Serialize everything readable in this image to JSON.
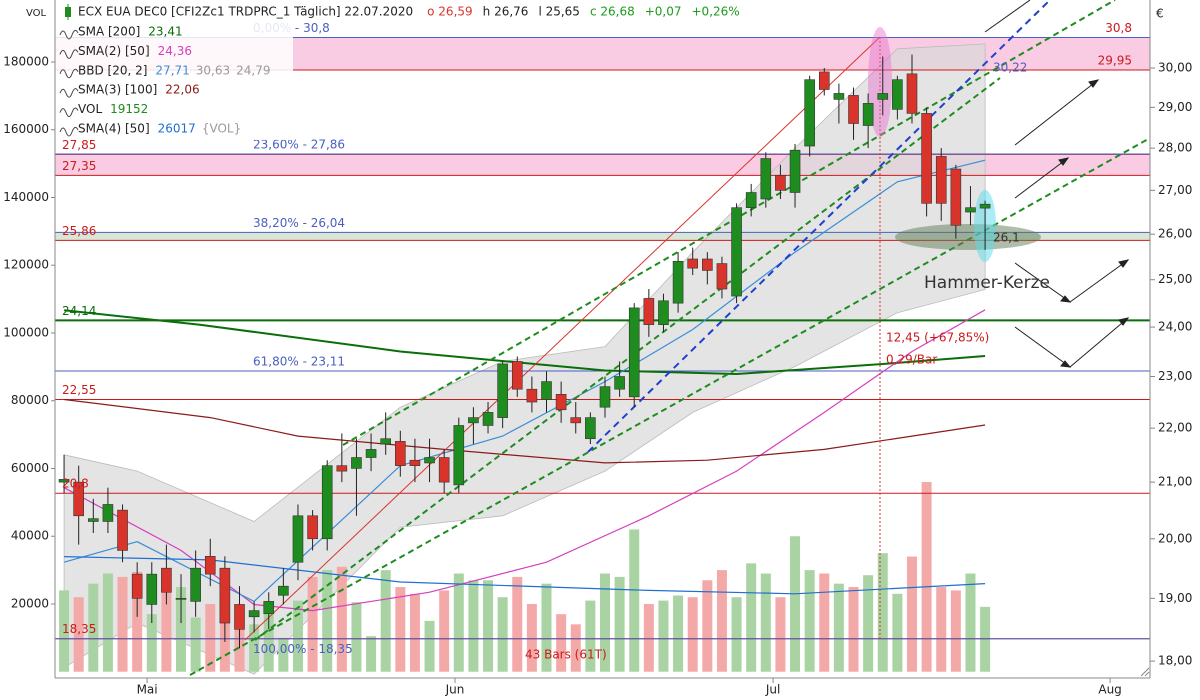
{
  "chart_data": {
    "type": "candlestick",
    "title": "ECX EUA DEC0 [CFI2Zc1 TRDPRC_1 Täglich] 22.07.2020",
    "quote": [
      {
        "text": "o 26,59",
        "color": "#d9342b"
      },
      {
        "text": "h 26,76",
        "color": "#222222"
      },
      {
        "text": "l 25,65",
        "color": "#222222"
      },
      {
        "text": "c 26,68",
        "color": "#1e9a1e"
      },
      {
        "text": "+0,07",
        "color": "#1e9a1e"
      },
      {
        "text": "+0,26%",
        "color": "#1e9a1e"
      }
    ],
    "y_label": "VOL",
    "y2_label": "€",
    "xlim": [
      -0.62,
      74.28
    ],
    "xticks": [
      {
        "value": 5.68,
        "label": "Mai"
      },
      {
        "value": 26.74,
        "label": "Jun"
      },
      {
        "value": 48.5,
        "label": "Jul"
      },
      {
        "value": 71.55,
        "label": "Aug"
      }
    ],
    "ylim": [
      -1850,
      198300
    ],
    "yticks": [
      20000,
      40000,
      60000,
      80000,
      100000,
      120000,
      140000,
      160000,
      180000
    ],
    "y2lim": [
      17.74,
      31.81
    ],
    "y2log": true,
    "y2ticks": [
      {
        "value": 18,
        "label": "18,00"
      },
      {
        "value": 19,
        "label": "19,00"
      },
      {
        "value": 20,
        "label": "20,00"
      },
      {
        "value": 21,
        "label": "21,00"
      },
      {
        "value": 22,
        "label": "22,00"
      },
      {
        "value": 23,
        "label": "23,00"
      },
      {
        "value": 24,
        "label": "24,00"
      },
      {
        "value": 25,
        "label": "25,00"
      },
      {
        "value": 26,
        "label": "26,00"
      },
      {
        "value": 27,
        "label": "27,00"
      },
      {
        "value": 28,
        "label": "28,00"
      },
      {
        "value": 29,
        "label": "29,00"
      },
      {
        "value": 30,
        "label": "30,00"
      }
    ],
    "up_color": "#1e8c1e",
    "down_color": "#d9342b",
    "volume_up_color": "#a9d3a2",
    "volume_down_color": "#f4a9a9",
    "candles": {
      "open": [
        21.0,
        21.0,
        20.3,
        20.3,
        20.5,
        19.4,
        18.9,
        19.5,
        19.0,
        18.95,
        19.7,
        19.5,
        18.9,
        18.7,
        18.75,
        19.05,
        19.6,
        20.4,
        20.0,
        21.3,
        21.25,
        21.45,
        21.7,
        21.75,
        21.4,
        21.35,
        21.45,
        20.95,
        22.1,
        22.05,
        22.2,
        23.3,
        22.75,
        22.55,
        22.65,
        22.2,
        21.8,
        22.4,
        22.75,
        22.6,
        24.6,
        24.05,
        24.5,
        25.45,
        25.45,
        25.35,
        24.65,
        26.6,
        26.8,
        27.35,
        26.95,
        28.05,
        29.9,
        29.2,
        29.3,
        28.55,
        29.2,
        28.95,
        29.85,
        28.85,
        27.8,
        27.5,
        26.5,
        26.59
      ],
      "high": [
        21.5,
        21.3,
        20.7,
        20.9,
        20.6,
        19.6,
        19.6,
        19.9,
        19.4,
        19.8,
        20.0,
        19.7,
        19.2,
        18.95,
        19.1,
        19.5,
        20.6,
        20.5,
        21.4,
        21.9,
        21.8,
        21.9,
        22.3,
        21.95,
        21.8,
        21.8,
        21.6,
        22.2,
        22.4,
        22.5,
        23.3,
        23.4,
        23.0,
        23.1,
        22.9,
        22.5,
        22.3,
        23.0,
        23.3,
        24.5,
        24.8,
        24.7,
        25.6,
        25.7,
        25.6,
        25.5,
        26.7,
        27.15,
        27.9,
        27.6,
        28.1,
        29.8,
        30.0,
        29.6,
        29.5,
        29.35,
        30.3,
        29.8,
        30.35,
        29.0,
        28.0,
        27.6,
        27.1,
        26.76
      ],
      "low": [
        20.8,
        19.9,
        20.1,
        20.1,
        19.6,
        18.7,
        18.6,
        18.9,
        18.6,
        18.7,
        19.2,
        18.3,
        18.2,
        18.45,
        18.5,
        18.9,
        19.3,
        19.8,
        19.8,
        21.0,
        20.4,
        21.2,
        21.5,
        21.1,
        21.0,
        21.0,
        20.8,
        20.8,
        21.7,
        21.9,
        22.0,
        22.6,
        22.3,
        22.3,
        22.1,
        21.9,
        21.7,
        22.2,
        22.6,
        22.4,
        23.8,
        23.9,
        24.3,
        25.1,
        24.9,
        24.6,
        24.5,
        26.4,
        26.6,
        26.8,
        26.6,
        27.8,
        29.3,
        28.6,
        28.2,
        28.0,
        28.8,
        28.7,
        28.6,
        26.4,
        26.3,
        25.9,
        26.2,
        25.65
      ],
      "close": [
        21.05,
        20.4,
        20.35,
        20.6,
        19.8,
        19.0,
        19.4,
        19.1,
        19.0,
        19.5,
        19.4,
        18.6,
        18.5,
        18.8,
        18.95,
        19.2,
        20.4,
        20.0,
        21.3,
        21.2,
        21.45,
        21.6,
        21.8,
        21.3,
        21.3,
        21.45,
        21.0,
        22.05,
        22.2,
        22.3,
        23.25,
        22.75,
        22.5,
        22.9,
        22.35,
        22.1,
        22.2,
        22.8,
        23.0,
        24.4,
        24.05,
        24.55,
        25.4,
        25.25,
        25.2,
        24.8,
        26.6,
        26.95,
        27.75,
        27.0,
        27.95,
        29.7,
        29.45,
        29.35,
        28.6,
        29.1,
        29.35,
        29.7,
        28.85,
        26.7,
        26.7,
        26.2,
        26.6,
        26.68
      ]
    },
    "indicators": [
      {
        "name": "SMA [200]",
        "labels": [
          "23,41"
        ],
        "kind": "line",
        "axis": "y2",
        "color": "#0a6e0a",
        "x": [
          0,
          9.3,
          23,
          37,
          46,
          56,
          63
        ],
        "values": [
          24.35,
          24.05,
          23.5,
          23.12,
          23.05,
          23.25,
          23.41
        ]
      },
      {
        "name": "SMA(2) [50]",
        "labels": [
          "24,36"
        ],
        "kind": "line",
        "axis": "y2",
        "color": "#d63fbf",
        "x": [
          0,
          8,
          13,
          17,
          25,
          33,
          40,
          46,
          52,
          58,
          63
        ],
        "values": [
          20.9,
          19.8,
          18.9,
          18.8,
          19.1,
          19.6,
          20.4,
          21.2,
          22.3,
          23.5,
          24.36
        ]
      },
      {
        "name": "BBD [20, 2]",
        "labels": [
          "27,71",
          "30,63",
          "24,79"
        ],
        "kind": "band",
        "axis": "y2",
        "color": "#3a8fd6",
        "band_color": "#d9d9d9",
        "x": [
          0,
          5,
          13,
          23,
          30,
          37,
          43,
          50,
          57,
          63
        ],
        "values": [
          19.6,
          19.95,
          18.95,
          21.3,
          21.85,
          22.9,
          23.95,
          25.6,
          27.2,
          27.71
        ],
        "upper": [
          21.5,
          21.2,
          20.3,
          22.4,
          23.3,
          23.6,
          25.6,
          28.0,
          30.5,
          30.63
        ],
        "lower": [
          17.9,
          18.6,
          17.8,
          20.2,
          20.4,
          21.2,
          22.3,
          23.2,
          24.3,
          24.79
        ]
      },
      {
        "name": "SMA(3) [100]",
        "labels": [
          "22,06"
        ],
        "kind": "line",
        "axis": "y2",
        "color": "#8b1a1a",
        "x": [
          0,
          10,
          16,
          26,
          37,
          44,
          52,
          58,
          63
        ],
        "values": [
          22.55,
          22.2,
          21.85,
          21.6,
          21.35,
          21.4,
          21.6,
          21.85,
          22.06
        ]
      },
      {
        "name": "VOL",
        "labels": [
          "19152"
        ],
        "kind": "volume",
        "axis": "y",
        "color": "#1e8c1e",
        "values": [
          24000,
          22000,
          26000,
          29000,
          28000,
          29500,
          17000,
          28500,
          25000,
          16000,
          20000,
          20500,
          15000,
          14000,
          20000,
          10000,
          21000,
          28000,
          30000,
          31000,
          20500,
          10500,
          30000,
          25000,
          23000,
          15000,
          24000,
          29000,
          27000,
          27000,
          22000,
          28000,
          20000,
          26000,
          17000,
          14000,
          21000,
          29000,
          28000,
          42000,
          20000,
          21000,
          22500,
          22000,
          27000,
          30000,
          22000,
          32000,
          29000,
          22000,
          40000,
          30000,
          29000,
          26000,
          25000,
          28500,
          35000,
          23000,
          34000,
          56000,
          25000,
          24000,
          29000,
          19152
        ]
      },
      {
        "name": "SMA(4) [50]",
        "labels": [
          "26017",
          "{VOL}"
        ],
        "kind": "line",
        "axis": "y",
        "color": "#1f6fd0",
        "x": [
          0,
          10,
          23,
          40,
          50,
          63
        ],
        "values": [
          34000,
          33000,
          26500,
          24000,
          23000,
          26017
        ]
      }
    ],
    "zones": [
      {
        "from": 29.95,
        "to": 30.8,
        "color": "#f9bfdc"
      },
      {
        "from": 27.35,
        "to": 27.85,
        "color": "#f9bfdc"
      },
      {
        "from": 25.86,
        "to": 26.04,
        "color": "#cfe0cc"
      }
    ],
    "levels": [
      {
        "value": 30.8,
        "label": "30,8",
        "color": "#cc1a1a",
        "side": "right"
      },
      {
        "value": 29.95,
        "label": "29,95",
        "color": "#cc1a1a",
        "side": "right"
      },
      {
        "value": 27.85,
        "label": "27,85",
        "color": "#cc1a1a",
        "side": "left"
      },
      {
        "value": 27.35,
        "label": "27,35",
        "color": "#cc1a1a",
        "side": "left"
      },
      {
        "value": 25.86,
        "label": "25,86",
        "color": "#cc1a1a",
        "side": "left"
      },
      {
        "value": 24.14,
        "label": "24,14",
        "color": "#0a6e0a",
        "side": "left"
      },
      {
        "value": 22.55,
        "label": "22,55",
        "color": "#cc1a1a",
        "side": "left"
      },
      {
        "value": 20.8,
        "label": "20,8",
        "color": "#cc1a1a",
        "side": "left"
      },
      {
        "value": 18.35,
        "label": "18,35",
        "color": "#cc1a1a",
        "side": "left"
      }
    ],
    "fibonacci": {
      "color": "#4a5fc1",
      "levels": [
        {
          "value": 30.8,
          "label": "0,00% - 30,8"
        },
        {
          "value": 27.86,
          "label": "23,60% - 27,86"
        },
        {
          "value": 26.04,
          "label": "38,20% - 26,04"
        },
        {
          "value": 23.11,
          "label": "61,80% - 23,11"
        },
        {
          "value": 18.35,
          "label": "100,00% - 18,35"
        }
      ]
    },
    "annotations": [
      "Hammer-Kerze",
      "12,45 (+67,85%)",
      "0,29/Bar",
      "43 Bars (61T)",
      "30,22",
      "26,1"
    ]
  }
}
